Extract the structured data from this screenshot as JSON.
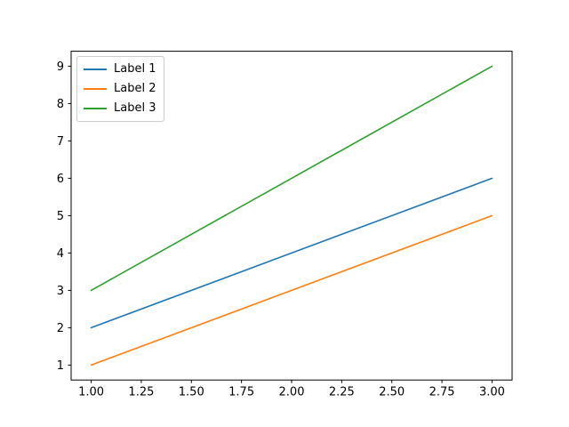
{
  "chart_data": {
    "type": "line",
    "title": "",
    "xlabel": "",
    "ylabel": "",
    "x": [
      1,
      2,
      3
    ],
    "series": [
      {
        "name": "Label 1",
        "values": [
          2,
          4,
          6
        ],
        "color": "#1f77b4"
      },
      {
        "name": "Label 2",
        "values": [
          1,
          3,
          5
        ],
        "color": "#ff7f0e"
      },
      {
        "name": "Label 3",
        "values": [
          3,
          6,
          9
        ],
        "color": "#2ca02c"
      }
    ],
    "xlim": [
      0.9,
      3.1
    ],
    "ylim": [
      0.6,
      9.4
    ],
    "x_tick_values": [
      1.0,
      1.25,
      1.5,
      1.75,
      2.0,
      2.25,
      2.5,
      2.75,
      3.0
    ],
    "x_tick_labels": [
      "1.00",
      "1.25",
      "1.50",
      "1.75",
      "2.00",
      "2.25",
      "2.50",
      "2.75",
      "3.00"
    ],
    "y_tick_values": [
      1,
      2,
      3,
      4,
      5,
      6,
      7,
      8,
      9
    ],
    "y_tick_labels": [
      "1",
      "2",
      "3",
      "4",
      "5",
      "6",
      "7",
      "8",
      "9"
    ],
    "grid": false,
    "legend_position": "upper left",
    "spine_color": "#000000",
    "background_color": "#ffffff"
  }
}
